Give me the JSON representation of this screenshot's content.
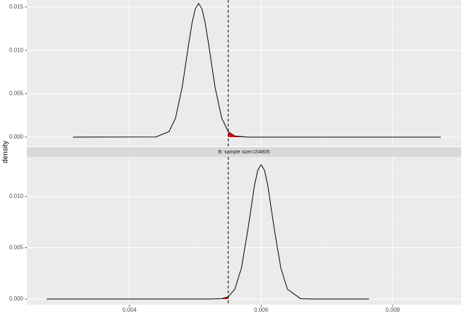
{
  "chart_data": {
    "type": "line",
    "ylabel": "density",
    "xlim": [
      0.00244,
      0.00904
    ],
    "xticks": [
      0.004,
      0.006,
      0.008
    ],
    "vline": 0.0055,
    "line_color": "#000000",
    "shade_color": "#ff0000",
    "grid": true,
    "panels": [
      {
        "ylim": [
          -0.00106,
          0.0158
        ],
        "yticks": [
          {
            "value": 0,
            "label": "0.000"
          },
          0.005,
          {
            "value": 0.01,
            "label": "0.010"
          },
          0.015
        ],
        "shade_side": "right",
        "x": [
          0.00314,
          0.0044,
          0.0046,
          0.0047,
          0.0048,
          0.0049,
          0.00495,
          0.005,
          0.00505,
          0.0051,
          0.00515,
          0.0052,
          0.0053,
          0.0054,
          0.0055,
          0.0056,
          0.0058,
          0.00873
        ],
        "values": [
          0,
          2e-05,
          0.00063,
          0.00221,
          0.00575,
          0.0108,
          0.01315,
          0.0148,
          0.0154,
          0.0148,
          0.01315,
          0.0108,
          0.00575,
          0.00221,
          0.00063,
          0.00013,
          0,
          0
        ]
      },
      {
        "strip": "B: sample size=154805",
        "ylim": [
          -0.00055,
          0.01386
        ],
        "yticks": [
          {
            "value": 0,
            "label": "0.000"
          },
          0.005,
          {
            "value": 0.01,
            "label": "0.010"
          }
        ],
        "shade_side": "left",
        "x": [
          0.00274,
          0.0052,
          0.0054,
          0.0055,
          0.0056,
          0.0057,
          0.0058,
          0.0059,
          0.00595,
          0.006,
          0.00605,
          0.0061,
          0.0062,
          0.0063,
          0.0064,
          0.0066,
          0.0068,
          0.00764
        ],
        "values": [
          0,
          0,
          4e-05,
          0.00022,
          0.00096,
          0.00301,
          0.00682,
          0.01113,
          0.01258,
          0.0131,
          0.01258,
          0.01113,
          0.00682,
          0.00301,
          0.00096,
          4e-05,
          0,
          0
        ]
      }
    ]
  }
}
